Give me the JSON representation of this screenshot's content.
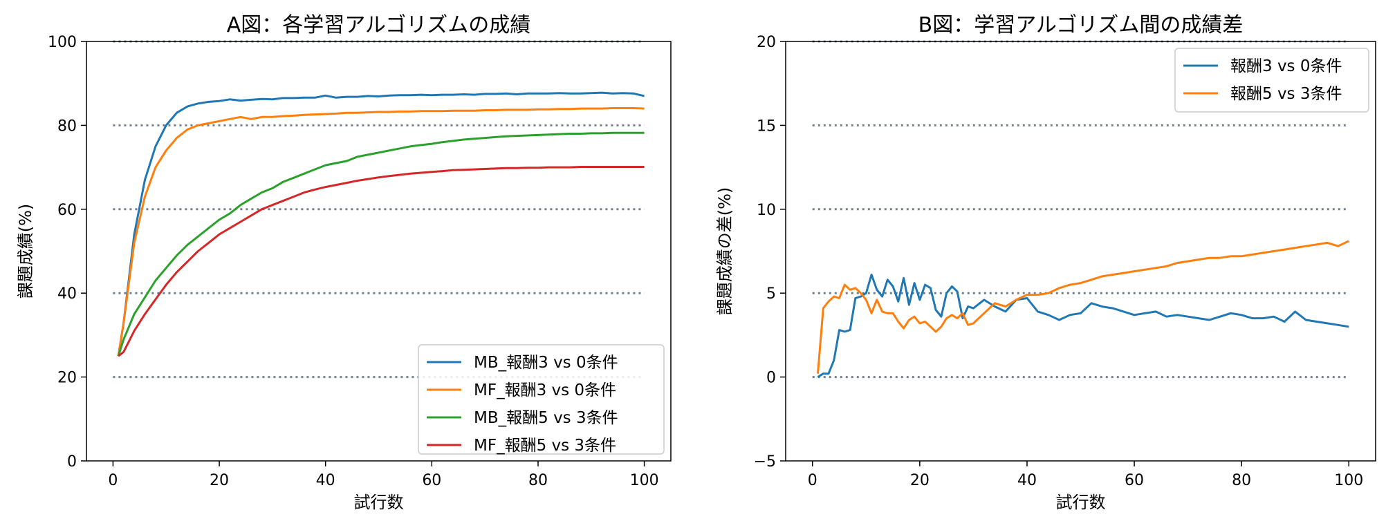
{
  "colors": {
    "refline": "#708090",
    "axis": "#000000"
  },
  "chart_data": [
    {
      "type": "line",
      "title": "A図：各学習アルゴリズムの成績",
      "xlabel": "試行数",
      "ylabel": "課題成績(%)",
      "xlim": [
        -5,
        105
      ],
      "ylim": [
        0,
        100
      ],
      "xticks": [
        0,
        20,
        40,
        60,
        80,
        100
      ],
      "yticks": [
        0,
        20,
        40,
        60,
        80,
        100
      ],
      "xtick_labels": [
        "0",
        "20",
        "40",
        "60",
        "80",
        "100"
      ],
      "ytick_labels": [
        "0",
        "20",
        "40",
        "60",
        "80",
        "100"
      ],
      "reference_lines": [
        20,
        40,
        60,
        80,
        100
      ],
      "legend_position": "lower-right",
      "series": [
        {
          "name": "MB_報酬3 vs 0条件",
          "color": "#1f77b4",
          "x": [
            1,
            2,
            4,
            6,
            8,
            10,
            12,
            14,
            16,
            18,
            20,
            22,
            24,
            26,
            28,
            30,
            32,
            34,
            36,
            38,
            40,
            42,
            44,
            46,
            48,
            50,
            52,
            54,
            56,
            58,
            60,
            62,
            64,
            66,
            68,
            70,
            72,
            74,
            76,
            78,
            80,
            82,
            84,
            86,
            88,
            90,
            92,
            94,
            96,
            98,
            100
          ],
          "y": [
            25,
            33,
            54,
            67,
            75,
            80,
            83,
            84.5,
            85.2,
            85.6,
            85.8,
            86.2,
            85.9,
            86.1,
            86.3,
            86.2,
            86.5,
            86.5,
            86.6,
            86.6,
            87.1,
            86.6,
            86.8,
            86.8,
            87.0,
            86.9,
            87.1,
            87.2,
            87.2,
            87.3,
            87.2,
            87.3,
            87.3,
            87.4,
            87.3,
            87.5,
            87.5,
            87.6,
            87.4,
            87.6,
            87.6,
            87.6,
            87.7,
            87.6,
            87.6,
            87.7,
            87.8,
            87.6,
            87.7,
            87.6,
            87.0
          ]
        },
        {
          "name": "MF_報酬3 vs 0条件",
          "color": "#ff7f0e",
          "x": [
            1,
            2,
            4,
            6,
            8,
            10,
            12,
            14,
            16,
            18,
            20,
            22,
            24,
            26,
            28,
            30,
            32,
            34,
            36,
            38,
            40,
            42,
            44,
            46,
            48,
            50,
            52,
            54,
            56,
            58,
            60,
            62,
            64,
            66,
            68,
            70,
            72,
            74,
            76,
            78,
            80,
            82,
            84,
            86,
            88,
            90,
            92,
            94,
            96,
            98,
            100
          ],
          "y": [
            25,
            33,
            52,
            63,
            70,
            74,
            77,
            79,
            80,
            80.5,
            81,
            81.5,
            82,
            81.5,
            82,
            82,
            82.2,
            82.3,
            82.5,
            82.6,
            82.7,
            82.8,
            83,
            83,
            83.1,
            83.2,
            83.2,
            83.3,
            83.3,
            83.4,
            83.4,
            83.4,
            83.5,
            83.5,
            83.5,
            83.6,
            83.6,
            83.7,
            83.7,
            83.7,
            83.8,
            83.8,
            83.9,
            83.9,
            84,
            84,
            84,
            84.1,
            84.1,
            84.1,
            84
          ]
        },
        {
          "name": "MB_報酬5 vs 3条件",
          "color": "#2ca02c",
          "x": [
            1,
            2,
            4,
            6,
            8,
            10,
            12,
            14,
            16,
            18,
            20,
            22,
            24,
            26,
            28,
            30,
            32,
            34,
            36,
            38,
            40,
            42,
            44,
            46,
            48,
            50,
            52,
            54,
            56,
            58,
            60,
            62,
            64,
            66,
            68,
            70,
            72,
            74,
            76,
            78,
            80,
            82,
            84,
            86,
            88,
            90,
            92,
            94,
            96,
            98,
            100
          ],
          "y": [
            25,
            29,
            35,
            39,
            43,
            46,
            49,
            51.5,
            53.5,
            55.5,
            57.5,
            59,
            61,
            62.5,
            64,
            65,
            66.5,
            67.5,
            68.5,
            69.5,
            70.5,
            71,
            71.5,
            72.5,
            73,
            73.5,
            74,
            74.5,
            75,
            75.3,
            75.6,
            76,
            76.3,
            76.6,
            76.8,
            77,
            77.2,
            77.4,
            77.5,
            77.6,
            77.7,
            77.8,
            77.9,
            78,
            78,
            78.1,
            78.1,
            78.2,
            78.2,
            78.2,
            78.2
          ]
        },
        {
          "name": "MF_報酬5 vs 3条件",
          "color": "#d62728",
          "x": [
            1,
            2,
            4,
            6,
            8,
            10,
            12,
            14,
            16,
            18,
            20,
            22,
            24,
            26,
            28,
            30,
            32,
            34,
            36,
            38,
            40,
            42,
            44,
            46,
            48,
            50,
            52,
            54,
            56,
            58,
            60,
            62,
            64,
            66,
            68,
            70,
            72,
            74,
            76,
            78,
            80,
            82,
            84,
            86,
            88,
            90,
            92,
            94,
            96,
            98,
            100
          ],
          "y": [
            25,
            26,
            31,
            35,
            38.5,
            42,
            45,
            47.5,
            50,
            52,
            54,
            55.5,
            57,
            58.5,
            60,
            61,
            62,
            63,
            64,
            64.7,
            65.3,
            65.8,
            66.3,
            66.8,
            67.2,
            67.6,
            67.9,
            68.2,
            68.5,
            68.7,
            68.9,
            69.1,
            69.3,
            69.4,
            69.5,
            69.6,
            69.7,
            69.8,
            69.8,
            69.9,
            69.9,
            70,
            70,
            70,
            70.1,
            70.1,
            70.1,
            70.1,
            70.1,
            70.1,
            70.1
          ]
        }
      ]
    },
    {
      "type": "line",
      "title": "B図：学習アルゴリズム間の成績差",
      "xlabel": "試行数",
      "ylabel": "課題成績の差(%)",
      "xlim": [
        -5,
        105
      ],
      "ylim": [
        -5,
        20
      ],
      "xticks": [
        0,
        20,
        40,
        60,
        80,
        100
      ],
      "yticks": [
        -5,
        0,
        5,
        10,
        15,
        20
      ],
      "xtick_labels": [
        "0",
        "20",
        "40",
        "60",
        "80",
        "100"
      ],
      "ytick_labels": [
        "−5",
        "0",
        "5",
        "10",
        "15",
        "20"
      ],
      "reference_lines": [
        0,
        5,
        10,
        15,
        20
      ],
      "legend_position": "top-right",
      "series": [
        {
          "name": "報酬3 vs 0条件",
          "color": "#1f77b4",
          "x": [
            1,
            2,
            3,
            4,
            5,
            6,
            7,
            8,
            9,
            10,
            11,
            12,
            13,
            14,
            15,
            16,
            17,
            18,
            19,
            20,
            21,
            22,
            23,
            24,
            25,
            26,
            27,
            28,
            29,
            30,
            32,
            34,
            36,
            38,
            40,
            42,
            44,
            46,
            48,
            50,
            52,
            54,
            56,
            58,
            60,
            62,
            64,
            66,
            68,
            70,
            72,
            74,
            76,
            78,
            80,
            82,
            84,
            86,
            88,
            90,
            92,
            94,
            96,
            98,
            100
          ],
          "y": [
            0,
            0.2,
            0.2,
            1,
            2.8,
            2.7,
            2.8,
            4.7,
            4.8,
            5,
            6.1,
            5.2,
            4.8,
            5.8,
            5.4,
            4.5,
            5.9,
            4.3,
            5.6,
            4.6,
            5.5,
            5.3,
            4,
            3.6,
            5,
            5.4,
            5.1,
            3.5,
            4.2,
            4.1,
            4.6,
            4.2,
            3.9,
            4.6,
            4.7,
            3.9,
            3.7,
            3.4,
            3.7,
            3.8,
            4.4,
            4.2,
            4.1,
            3.9,
            3.7,
            3.8,
            3.9,
            3.6,
            3.7,
            3.6,
            3.5,
            3.4,
            3.6,
            3.8,
            3.7,
            3.5,
            3.5,
            3.6,
            3.3,
            3.9,
            3.4,
            3.3,
            3.2,
            3.1,
            3.0
          ]
        },
        {
          "name": "報酬5 vs 3条件",
          "color": "#ff7f0e",
          "x": [
            1,
            2,
            3,
            4,
            5,
            6,
            7,
            8,
            9,
            10,
            11,
            12,
            13,
            14,
            15,
            16,
            17,
            18,
            19,
            20,
            21,
            22,
            23,
            24,
            25,
            26,
            27,
            28,
            29,
            30,
            32,
            34,
            36,
            38,
            40,
            42,
            44,
            46,
            48,
            50,
            52,
            54,
            56,
            58,
            60,
            62,
            64,
            66,
            68,
            70,
            72,
            74,
            76,
            78,
            80,
            82,
            84,
            86,
            88,
            90,
            92,
            94,
            96,
            98,
            100
          ],
          "y": [
            0.2,
            4.1,
            4.5,
            4.8,
            4.7,
            5.5,
            5.2,
            5.3,
            5.0,
            4.6,
            3.8,
            4.6,
            3.9,
            3.8,
            3.8,
            3.3,
            2.9,
            3.4,
            3.6,
            3.2,
            3.3,
            3.0,
            2.7,
            3.0,
            3.5,
            3.7,
            3.5,
            3.8,
            3.1,
            3.2,
            3.8,
            4.4,
            4.2,
            4.6,
            4.9,
            4.9,
            5.0,
            5.3,
            5.5,
            5.6,
            5.8,
            6.0,
            6.1,
            6.2,
            6.3,
            6.4,
            6.5,
            6.6,
            6.8,
            6.9,
            7.0,
            7.1,
            7.1,
            7.2,
            7.2,
            7.3,
            7.4,
            7.5,
            7.6,
            7.7,
            7.8,
            7.9,
            8.0,
            7.8,
            8.1
          ]
        }
      ]
    }
  ]
}
